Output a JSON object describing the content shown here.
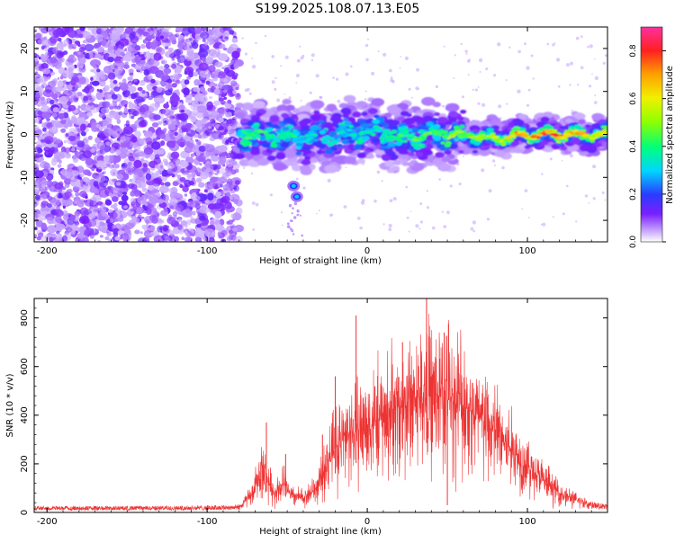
{
  "title": "S199.2025.108.07.13.E05",
  "chart_data": [
    {
      "type": "heatmap",
      "xlabel": "Height of straight line (km)",
      "ylabel": "Frequency (Hz)",
      "xlim": [
        -208,
        150
      ],
      "ylim": [
        -25,
        25
      ],
      "x_ticks": [
        -200,
        -100,
        0,
        100
      ],
      "x_tick_labels": [
        "-200",
        "-100",
        "0",
        "100"
      ],
      "y_ticks": [
        -20,
        -10,
        0,
        10,
        20
      ],
      "y_tick_labels": [
        "-20",
        "-10",
        "0",
        "10",
        "20"
      ],
      "colorbar": {
        "label": "Normalized spectral amplitude",
        "range": [
          0,
          0.9
        ],
        "ticks": [
          0,
          0.2,
          0.4,
          0.6,
          0.8
        ],
        "tick_labels": [
          "0.0",
          "0.2",
          "0.4",
          "0.6",
          "0.8"
        ]
      },
      "noise_region_x": [
        -208,
        -80
      ],
      "signal_ridge": {
        "x": [
          -80,
          -60,
          -40,
          -20,
          0,
          20,
          40,
          60,
          80,
          100,
          120,
          150
        ],
        "frequency": [
          0,
          0,
          -1,
          0,
          1,
          -1,
          0,
          0,
          -1,
          0,
          0,
          0
        ],
        "amplitude": [
          0.5,
          0.45,
          0.4,
          0.35,
          0.4,
          0.45,
          0.55,
          0.6,
          0.7,
          0.8,
          0.85,
          0.7
        ]
      },
      "side_blobs": [
        {
          "x": -46,
          "frequency": -12
        },
        {
          "x": -44,
          "frequency": -14.5
        }
      ],
      "grid": false,
      "legend": "none"
    },
    {
      "type": "line",
      "xlabel": "Height of straight line (km)",
      "ylabel": "SNR (10 * v/v)",
      "xlim": [
        -208,
        150
      ],
      "ylim": [
        0,
        880
      ],
      "x_ticks": [
        -200,
        -100,
        0,
        100
      ],
      "x_tick_labels": [
        "-200",
        "-100",
        "0",
        "100"
      ],
      "y_ticks": [
        0,
        200,
        400,
        600,
        800
      ],
      "y_tick_labels": [
        "0",
        "200",
        "400",
        "600",
        "800"
      ],
      "line_color": "#ee3333",
      "envelope": {
        "x": [
          -208,
          -150,
          -100,
          -80,
          -72,
          -66,
          -62,
          -58,
          -52,
          -48,
          -40,
          -30,
          -25,
          -18,
          -10,
          0,
          10,
          20,
          30,
          40,
          50,
          60,
          70,
          80,
          90,
          100,
          110,
          120,
          130,
          140,
          150
        ],
        "y": [
          20,
          20,
          22,
          25,
          70,
          180,
          130,
          80,
          120,
          70,
          60,
          110,
          210,
          290,
          330,
          360,
          390,
          430,
          470,
          480,
          470,
          450,
          380,
          330,
          260,
          190,
          130,
          80,
          50,
          35,
          25
        ]
      },
      "spikes": [
        {
          "x": -63,
          "y": 370
        },
        {
          "x": -51,
          "y": 240
        },
        {
          "x": -28,
          "y": 320
        },
        {
          "x": -20,
          "y": 560
        },
        {
          "x": -7,
          "y": 810
        },
        {
          "x": 22,
          "y": 700
        },
        {
          "x": 37,
          "y": 880
        },
        {
          "x": 48,
          "y": 740
        }
      ],
      "grid": false,
      "legend": "none"
    }
  ]
}
